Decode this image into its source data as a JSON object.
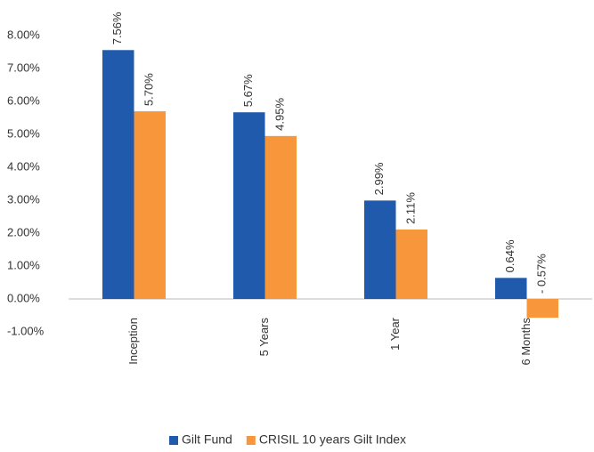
{
  "chart_data": {
    "type": "bar",
    "categories": [
      "Inception",
      "5 Years",
      "1 Year",
      "6 Months"
    ],
    "series": [
      {
        "name": "Gilt Fund",
        "color": "#1f5aad",
        "values": [
          7.56,
          5.67,
          2.99,
          0.64
        ],
        "value_labels": [
          "7.56%",
          "5.67%",
          "2.99%",
          "0.64%"
        ]
      },
      {
        "name": "CRISIL 10 years Gilt Index",
        "color": "#f7963a",
        "values": [
          5.7,
          4.95,
          2.11,
          -0.57
        ],
        "value_labels": [
          "5.70%",
          "4.95%",
          "2.11%",
          "- 0.57%"
        ]
      }
    ],
    "ylim": [
      -1,
      8
    ],
    "yticks": [
      {
        "value": -1,
        "label": "-1.00%"
      },
      {
        "value": 0,
        "label": "0.00%"
      },
      {
        "value": 1,
        "label": "1.00%"
      },
      {
        "value": 2,
        "label": "2.00%"
      },
      {
        "value": 3,
        "label": "3.00%"
      },
      {
        "value": 4,
        "label": "4.00%"
      },
      {
        "value": 5,
        "label": "5.00%"
      },
      {
        "value": 6,
        "label": "6.00%"
      },
      {
        "value": 7,
        "label": "7.00%"
      },
      {
        "value": 8,
        "label": "8.00%"
      }
    ],
    "legend": "bottom"
  }
}
